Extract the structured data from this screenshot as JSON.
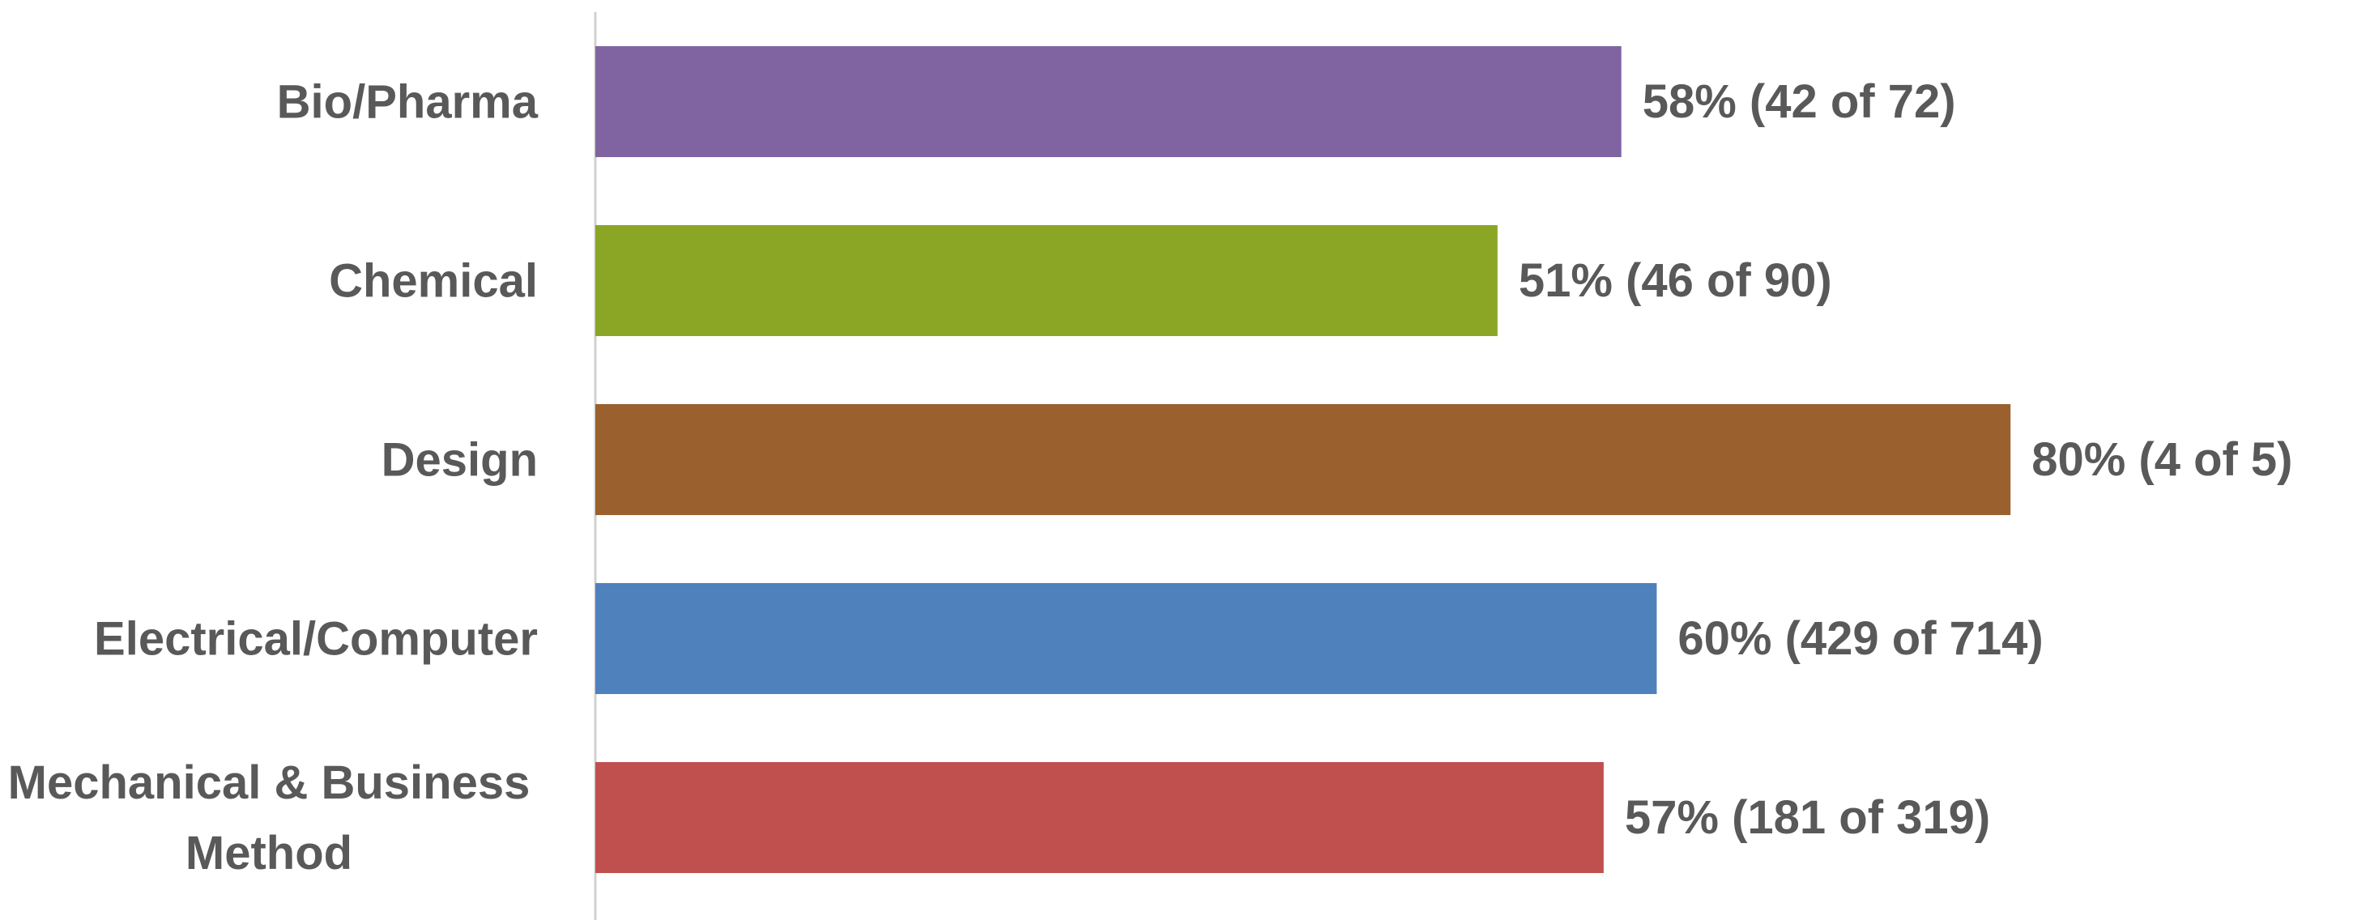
{
  "chart_data": {
    "type": "bar",
    "orientation": "horizontal",
    "categories": [
      "Bio/Pharma",
      "Chemical",
      "Design",
      "Electrical/Computer",
      "Mechanical & Business Method"
    ],
    "values": [
      58,
      51,
      80,
      60,
      57
    ],
    "value_labels": [
      "58% (42 of 72)",
      "51% (46 of 90)",
      "80% (4 of 5)",
      "60% (429 of 714)",
      "57% (181 of 319)"
    ],
    "colors": [
      "#8064a2",
      "#8aa624",
      "#9a612e",
      "#4f81bd",
      "#c0504d"
    ],
    "xlim": [
      0,
      100
    ]
  }
}
